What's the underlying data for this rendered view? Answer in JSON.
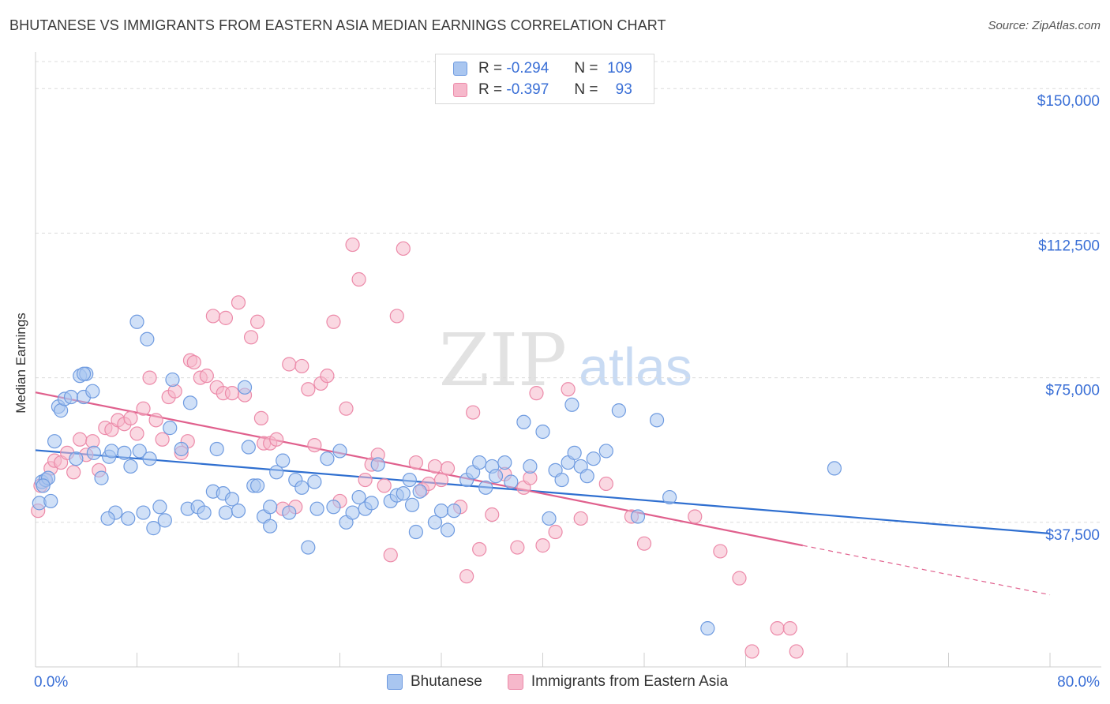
{
  "title": "BHUTANESE VS IMMIGRANTS FROM EASTERN ASIA MEDIAN EARNINGS CORRELATION CHART",
  "source": "Source: ZipAtlas.com",
  "watermark": {
    "zip": "ZIP",
    "atlas": "atlas"
  },
  "legend": {
    "r_label": "R =",
    "n_label": "N =",
    "rows": [
      {
        "series": "Bhutanese",
        "r": "-0.294",
        "n": "109"
      },
      {
        "series": "Immigrants from Eastern Asia",
        "r": "-0.397",
        "n": "93"
      }
    ]
  },
  "colors": {
    "blue_fill": "#a9c6f0",
    "blue_stroke": "#6f9be0",
    "blue_line": "#2f6fd0",
    "pink_fill": "#f6b8cb",
    "pink_stroke": "#ec8aa9",
    "pink_line": "#e0608d",
    "axis_label": "#3a6fd6",
    "grid": "#dcdcdc"
  },
  "chart_data": {
    "type": "scatter",
    "title": "BHUTANESE VS IMMIGRANTS FROM EASTERN ASIA MEDIAN EARNINGS CORRELATION CHART",
    "xlabel": "",
    "ylabel": "Median Earnings",
    "xlim": [
      0,
      80
    ],
    "ylim": [
      0,
      157000
    ],
    "x_tick_labels": [
      "0.0%",
      "80.0%"
    ],
    "y_ticks": [
      {
        "value": 37500,
        "label": "$37,500"
      },
      {
        "value": 75000,
        "label": "$75,000"
      },
      {
        "value": 112500,
        "label": "$112,500"
      },
      {
        "value": 150000,
        "label": "$150,000"
      }
    ],
    "grid": "horizontal dashed",
    "legend_position": "top-center",
    "series": [
      {
        "name": "Bhutanese",
        "color": "#6f9be0",
        "trend": {
          "x": [
            0,
            80
          ],
          "y": [
            56200,
            34600
          ]
        },
        "points": [
          [
            0.3,
            42500
          ],
          [
            0.5,
            48000
          ],
          [
            0.8,
            48500
          ],
          [
            1.0,
            49000
          ],
          [
            1.5,
            58500
          ],
          [
            1.8,
            67500
          ],
          [
            2.0,
            66500
          ],
          [
            2.3,
            69500
          ],
          [
            2.8,
            70000
          ],
          [
            3.5,
            75500
          ],
          [
            3.8,
            70000
          ],
          [
            4.0,
            76000
          ],
          [
            4.5,
            71500
          ],
          [
            3.2,
            54000
          ],
          [
            3.8,
            76000
          ],
          [
            4.6,
            55500
          ],
          [
            5.2,
            49000
          ],
          [
            5.8,
            54500
          ],
          [
            6.0,
            56000
          ],
          [
            6.3,
            40000
          ],
          [
            7.0,
            55500
          ],
          [
            7.3,
            38500
          ],
          [
            7.5,
            52000
          ],
          [
            8.2,
            56000
          ],
          [
            8.5,
            40000
          ],
          [
            9.0,
            54000
          ],
          [
            9.3,
            36000
          ],
          [
            9.8,
            41500
          ],
          [
            10.2,
            38000
          ],
          [
            10.8,
            74500
          ],
          [
            11.5,
            56500
          ],
          [
            12.0,
            41000
          ],
          [
            12.2,
            68500
          ],
          [
            12.8,
            41500
          ],
          [
            13.3,
            40000
          ],
          [
            14.0,
            45500
          ],
          [
            14.3,
            56500
          ],
          [
            14.8,
            45000
          ],
          [
            15.0,
            40000
          ],
          [
            15.5,
            43500
          ],
          [
            16.0,
            40500
          ],
          [
            16.5,
            72500
          ],
          [
            16.8,
            57000
          ],
          [
            17.2,
            47000
          ],
          [
            17.5,
            47000
          ],
          [
            18.0,
            39000
          ],
          [
            18.5,
            36500
          ],
          [
            18.5,
            41500
          ],
          [
            19.0,
            50500
          ],
          [
            19.5,
            53500
          ],
          [
            20.0,
            40000
          ],
          [
            20.5,
            48500
          ],
          [
            21.0,
            46500
          ],
          [
            21.5,
            31000
          ],
          [
            22.0,
            48000
          ],
          [
            22.2,
            41000
          ],
          [
            23.0,
            54000
          ],
          [
            23.5,
            41500
          ],
          [
            24.0,
            56000
          ],
          [
            24.5,
            37500
          ],
          [
            25.0,
            40000
          ],
          [
            25.5,
            44000
          ],
          [
            26.0,
            41000
          ],
          [
            26.5,
            42500
          ],
          [
            27.0,
            52500
          ],
          [
            28.0,
            43000
          ],
          [
            28.5,
            44500
          ],
          [
            29.0,
            45000
          ],
          [
            29.5,
            48500
          ],
          [
            29.7,
            42000
          ],
          [
            30.0,
            35000
          ],
          [
            30.3,
            45500
          ],
          [
            31.5,
            37500
          ],
          [
            32.0,
            40500
          ],
          [
            32.5,
            35500
          ],
          [
            33.0,
            40500
          ],
          [
            34.0,
            48500
          ],
          [
            34.5,
            50500
          ],
          [
            35.0,
            53000
          ],
          [
            35.5,
            46500
          ],
          [
            36.0,
            52000
          ],
          [
            36.3,
            49500
          ],
          [
            37.0,
            53000
          ],
          [
            37.5,
            48000
          ],
          [
            38.5,
            63500
          ],
          [
            39.0,
            52000
          ],
          [
            40.0,
            61000
          ],
          [
            40.5,
            38500
          ],
          [
            41.0,
            51000
          ],
          [
            41.5,
            48500
          ],
          [
            42.0,
            53000
          ],
          [
            42.3,
            68000
          ],
          [
            42.5,
            55500
          ],
          [
            43.0,
            52000
          ],
          [
            43.5,
            49500
          ],
          [
            44.0,
            54000
          ],
          [
            45.0,
            56000
          ],
          [
            46.0,
            66500
          ],
          [
            47.5,
            39000
          ],
          [
            49.0,
            64000
          ],
          [
            50.0,
            44000
          ],
          [
            5.7,
            38500
          ],
          [
            8.0,
            89500
          ],
          [
            8.8,
            85000
          ],
          [
            10.6,
            62000
          ],
          [
            63.0,
            51500
          ],
          [
            53.0,
            10000
          ],
          [
            1.2,
            43000
          ],
          [
            0.6,
            47000
          ]
        ]
      },
      {
        "name": "Immigrants from Eastern Asia",
        "color": "#ec8aa9",
        "trend": {
          "x": [
            0,
            60.5
          ],
          "y": [
            71200,
            31500
          ]
        },
        "trend_dashed": {
          "x": [
            60.5,
            80
          ],
          "y": [
            31500,
            18700
          ]
        },
        "points": [
          [
            0.2,
            40500
          ],
          [
            0.4,
            47000
          ],
          [
            0.8,
            48500
          ],
          [
            1.2,
            51500
          ],
          [
            1.5,
            53500
          ],
          [
            2.0,
            53000
          ],
          [
            2.5,
            55500
          ],
          [
            3.0,
            50500
          ],
          [
            3.5,
            59000
          ],
          [
            4.0,
            55000
          ],
          [
            4.5,
            58500
          ],
          [
            5.0,
            51000
          ],
          [
            5.5,
            62000
          ],
          [
            6.0,
            61500
          ],
          [
            6.5,
            64000
          ],
          [
            7.0,
            63000
          ],
          [
            7.5,
            64500
          ],
          [
            8.0,
            60500
          ],
          [
            8.5,
            67000
          ],
          [
            9.0,
            75000
          ],
          [
            9.5,
            64000
          ],
          [
            10.0,
            59000
          ],
          [
            10.5,
            70000
          ],
          [
            11.0,
            71500
          ],
          [
            11.5,
            55500
          ],
          [
            12.0,
            58500
          ],
          [
            12.2,
            79500
          ],
          [
            12.5,
            79000
          ],
          [
            13.0,
            75000
          ],
          [
            13.5,
            75500
          ],
          [
            14.0,
            91000
          ],
          [
            14.3,
            72500
          ],
          [
            14.8,
            71000
          ],
          [
            15.0,
            90500
          ],
          [
            15.5,
            71000
          ],
          [
            16.0,
            94500
          ],
          [
            16.5,
            70500
          ],
          [
            17.0,
            85500
          ],
          [
            17.5,
            89500
          ],
          [
            17.8,
            64500
          ],
          [
            18.0,
            58000
          ],
          [
            18.5,
            58000
          ],
          [
            19.0,
            59000
          ],
          [
            19.5,
            41000
          ],
          [
            20.0,
            78500
          ],
          [
            20.5,
            41500
          ],
          [
            21.0,
            78000
          ],
          [
            21.5,
            72000
          ],
          [
            22.0,
            57500
          ],
          [
            22.5,
            73500
          ],
          [
            23.0,
            75500
          ],
          [
            23.5,
            89500
          ],
          [
            24.0,
            43000
          ],
          [
            24.5,
            67000
          ],
          [
            25.0,
            109500
          ],
          [
            25.5,
            100500
          ],
          [
            26.0,
            48500
          ],
          [
            26.5,
            52500
          ],
          [
            27.0,
            55000
          ],
          [
            27.5,
            47000
          ],
          [
            28.0,
            29000
          ],
          [
            28.5,
            91000
          ],
          [
            29.0,
            108500
          ],
          [
            30.0,
            53000
          ],
          [
            30.5,
            46000
          ],
          [
            31.0,
            47500
          ],
          [
            31.5,
            52000
          ],
          [
            32.0,
            48500
          ],
          [
            32.5,
            51500
          ],
          [
            33.5,
            41500
          ],
          [
            34.0,
            23500
          ],
          [
            34.5,
            66000
          ],
          [
            35.0,
            30500
          ],
          [
            36.0,
            39500
          ],
          [
            37.0,
            50000
          ],
          [
            38.0,
            31000
          ],
          [
            38.5,
            46500
          ],
          [
            39.0,
            49000
          ],
          [
            39.5,
            71000
          ],
          [
            40.0,
            31500
          ],
          [
            41.0,
            35000
          ],
          [
            42.0,
            72000
          ],
          [
            43.0,
            38500
          ],
          [
            45.0,
            47500
          ],
          [
            47.0,
            39000
          ],
          [
            48.0,
            32000
          ],
          [
            52.0,
            39000
          ],
          [
            54.0,
            30000
          ],
          [
            55.5,
            23000
          ],
          [
            56.5,
            4000
          ],
          [
            58.5,
            10000
          ],
          [
            59.5,
            10000
          ],
          [
            60.0,
            4000
          ]
        ]
      }
    ]
  }
}
